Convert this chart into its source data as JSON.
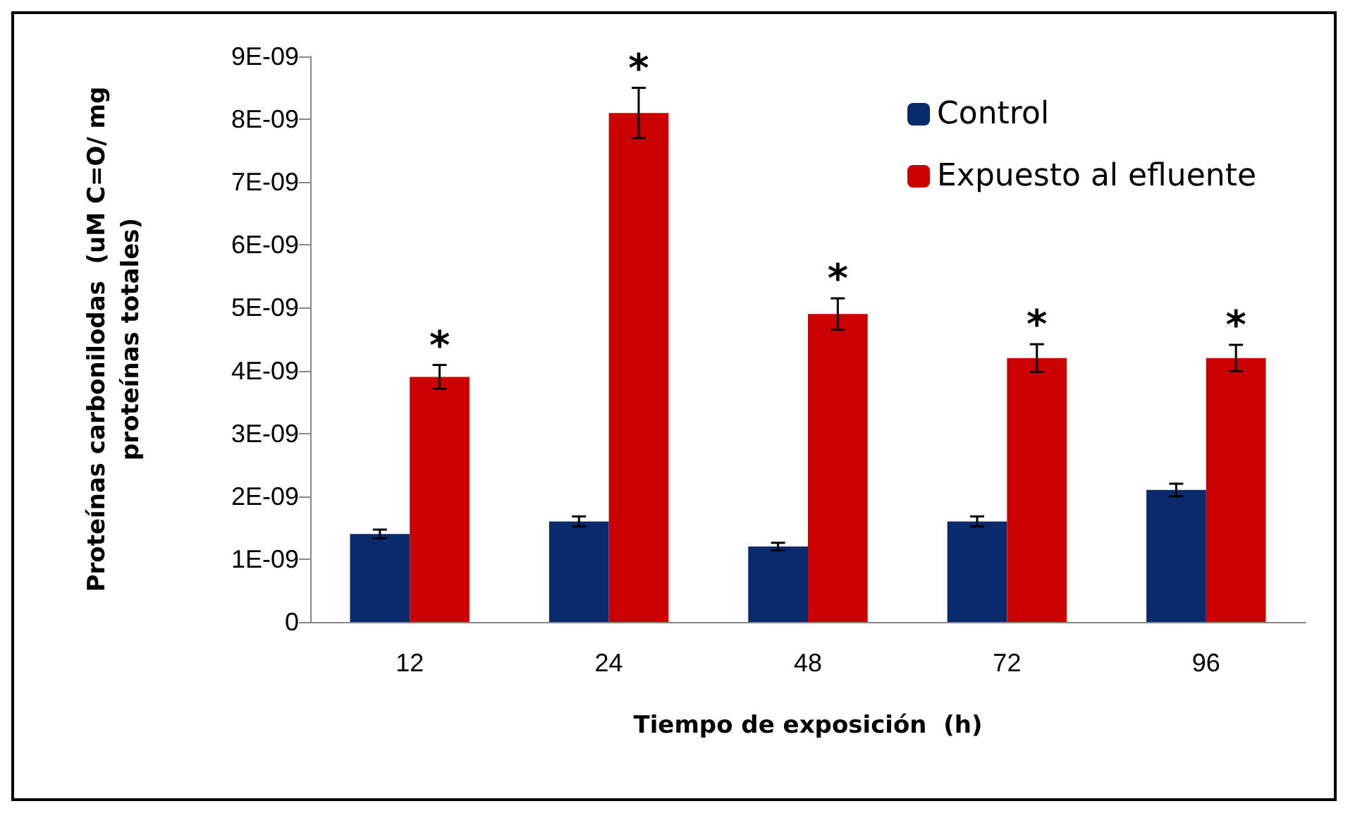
{
  "chart_data": {
    "type": "bar",
    "xlabel": "Tiempo de exposición  (h)",
    "ylabel": "Proteínas carbonilodas  (uM C=O/ mg\nproteínas totales)",
    "categories": [
      "12",
      "24",
      "48",
      "72",
      "96"
    ],
    "series": [
      {
        "name": "Control",
        "color": "#0a2a6e",
        "values": [
          1.4e-09,
          1.6e-09,
          1.2e-09,
          1.6e-09,
          2.1e-09
        ],
        "errors": [
          7e-11,
          8e-11,
          6e-11,
          8e-11,
          1e-10
        ]
      },
      {
        "name": "Expuesto al efluente",
        "color": "#cc0000",
        "values": [
          3.9e-09,
          8.1e-09,
          4.9e-09,
          4.2e-09,
          4.2e-09
        ],
        "errors": [
          1.9e-10,
          4e-10,
          2.5e-10,
          2.2e-10,
          2.1e-10
        ]
      }
    ],
    "ylim": [
      0,
      9e-09
    ],
    "yticks": [
      0,
      {
        "value": 1e-09,
        "label": "1E-09"
      },
      {
        "value": 2e-09,
        "label": "2E-09"
      },
      {
        "value": 3e-09,
        "label": "3E-09"
      },
      {
        "value": 4e-09,
        "label": "4E-09"
      },
      {
        "value": 5e-09,
        "label": "5E-09"
      },
      {
        "value": 6e-09,
        "label": "6E-09"
      },
      {
        "value": 7e-09,
        "label": "7E-09"
      },
      {
        "value": 8e-09,
        "label": "8E-09"
      },
      {
        "value": 9e-09,
        "label": "9E-09"
      }
    ],
    "annotations": [
      "*",
      "*",
      "*",
      "*",
      "*"
    ],
    "legend": "top right",
    "grid": false
  }
}
